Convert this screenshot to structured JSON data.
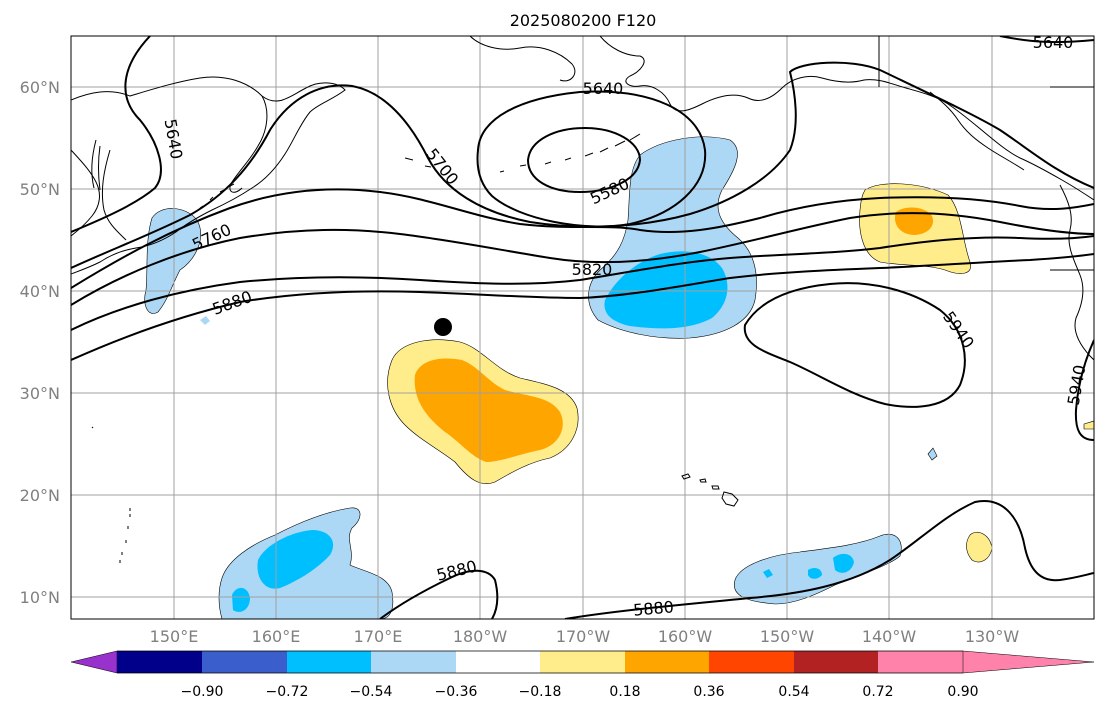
{
  "title": "2025080200 F120",
  "lat_labels": [
    "60°N",
    "50°N",
    "40°N",
    "30°N",
    "20°N",
    "10°N"
  ],
  "lon_labels": [
    "150°E",
    "160°E",
    "170°E",
    "180°W",
    "170°W",
    "160°W",
    "150°W",
    "140°W",
    "130°W"
  ],
  "contour_labels": [
    "5640",
    "5640",
    "5640",
    "5700",
    "5580",
    "5760",
    "5820",
    "5880",
    "5940",
    "5940",
    "5880",
    "5880"
  ],
  "colorbar": {
    "ticks": [
      "−0.90",
      "−0.72",
      "−0.54",
      "−0.36",
      "−0.18",
      "0.18",
      "0.36",
      "0.54",
      "0.72",
      "0.90"
    ],
    "colors": [
      "#9932cc",
      "#00008b",
      "#3a5fcd",
      "#00bfff",
      "#add8f5",
      "#ffffff",
      "#ffec8b",
      "#ffa500",
      "#ff4500",
      "#b22222",
      "#ff82ab"
    ]
  },
  "marker": "black-dot"
}
